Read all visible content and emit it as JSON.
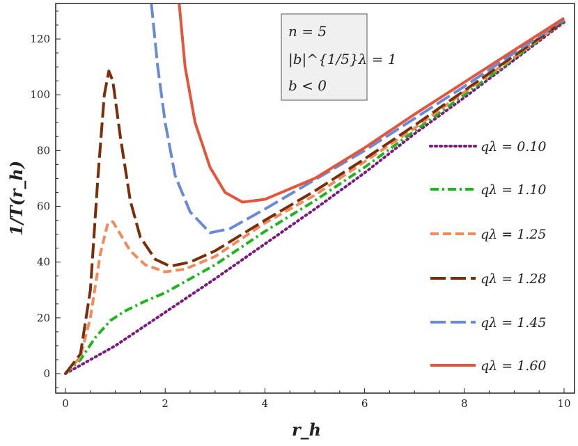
{
  "chart_data": {
    "type": "line",
    "xlabel": "r_h",
    "ylabel": "1/T(r_h)",
    "xlim": [
      -0.2,
      10.2
    ],
    "ylim": [
      -7.5,
      132.5
    ],
    "x_ticks": [
      "0",
      "2",
      "4",
      "6",
      "8",
      "10"
    ],
    "y_ticks": [
      "0",
      "20",
      "40",
      "60",
      "80",
      "100",
      "120"
    ],
    "grid": false,
    "legend_position": "right",
    "annotation": [
      "n = 5",
      "|b|^{1/5}λ = 1",
      "b < 0"
    ],
    "series": [
      {
        "name": "qλ = 0.10",
        "color": "#7b1a7e",
        "style": "dotted",
        "points": [
          [
            0,
            0
          ],
          [
            0.5,
            5
          ],
          [
            1,
            10
          ],
          [
            2,
            22
          ],
          [
            3,
            34
          ],
          [
            4,
            46.5
          ],
          [
            5,
            59
          ],
          [
            6,
            72
          ],
          [
            7,
            86
          ],
          [
            8,
            99
          ],
          [
            9,
            112.5
          ],
          [
            10,
            126
          ]
        ]
      },
      {
        "name": "qλ = 1.10",
        "color": "#1fb51f",
        "style": "dashdot",
        "points": [
          [
            0,
            0
          ],
          [
            0.3,
            5
          ],
          [
            0.6,
            13
          ],
          [
            0.9,
            19
          ],
          [
            1.2,
            22.5
          ],
          [
            1.6,
            26
          ],
          [
            2,
            29
          ],
          [
            2.5,
            34
          ],
          [
            3,
            39
          ],
          [
            3.5,
            45
          ],
          [
            4,
            51
          ],
          [
            5,
            62
          ],
          [
            6,
            74
          ],
          [
            7,
            87
          ],
          [
            8,
            100
          ],
          [
            9,
            113
          ],
          [
            10,
            126.5
          ]
        ]
      },
      {
        "name": "qλ = 1.25",
        "color": "#f28b5c",
        "style": "dashed",
        "points": [
          [
            0,
            0
          ],
          [
            0.3,
            6
          ],
          [
            0.5,
            20
          ],
          [
            0.7,
            43
          ],
          [
            0.85,
            54
          ],
          [
            0.95,
            54.5
          ],
          [
            1.1,
            50
          ],
          [
            1.3,
            44
          ],
          [
            1.6,
            39
          ],
          [
            2,
            36.5
          ],
          [
            2.4,
            37.5
          ],
          [
            3,
            42
          ],
          [
            3.5,
            48
          ],
          [
            4,
            54
          ],
          [
            5,
            64
          ],
          [
            6,
            76
          ],
          [
            7,
            88
          ],
          [
            8,
            101
          ],
          [
            9,
            113.5
          ],
          [
            10,
            126.5
          ]
        ]
      },
      {
        "name": "qλ = 1.28",
        "color": "#7a2e0a",
        "style": "longdash",
        "points": [
          [
            0,
            0
          ],
          [
            0.3,
            7
          ],
          [
            0.5,
            30
          ],
          [
            0.65,
            70
          ],
          [
            0.78,
            100
          ],
          [
            0.87,
            108.5
          ],
          [
            0.95,
            105
          ],
          [
            1.1,
            85
          ],
          [
            1.3,
            62
          ],
          [
            1.5,
            49
          ],
          [
            1.8,
            41
          ],
          [
            2.1,
            38.5
          ],
          [
            2.5,
            40
          ],
          [
            3,
            44
          ],
          [
            4,
            55
          ],
          [
            5,
            65.5
          ],
          [
            6,
            77
          ],
          [
            7,
            89
          ],
          [
            8,
            101.5
          ],
          [
            9,
            114
          ],
          [
            10,
            126.5
          ]
        ]
      },
      {
        "name": "qλ = 1.45",
        "color": "#6a8ad8",
        "style": "longdash",
        "points": [
          [
            1.72,
            133
          ],
          [
            1.85,
            110
          ],
          [
            2,
            90
          ],
          [
            2.2,
            71
          ],
          [
            2.5,
            58
          ],
          [
            2.9,
            50.5
          ],
          [
            3.3,
            52
          ],
          [
            4,
            59
          ],
          [
            5,
            69.5
          ],
          [
            6,
            80
          ],
          [
            7,
            91.5
          ],
          [
            8,
            103
          ],
          [
            9,
            115
          ],
          [
            10,
            127
          ]
        ]
      },
      {
        "name": "qλ = 1.60",
        "color": "#e5553b",
        "style": "solid",
        "points": [
          [
            2.28,
            133
          ],
          [
            2.4,
            110
          ],
          [
            2.6,
            90
          ],
          [
            2.9,
            74
          ],
          [
            3.2,
            65
          ],
          [
            3.55,
            61.5
          ],
          [
            4,
            62.5
          ],
          [
            5,
            70
          ],
          [
            6,
            81
          ],
          [
            7,
            93
          ],
          [
            8,
            104.5
          ],
          [
            9,
            116
          ],
          [
            10,
            127.5
          ]
        ]
      }
    ]
  }
}
